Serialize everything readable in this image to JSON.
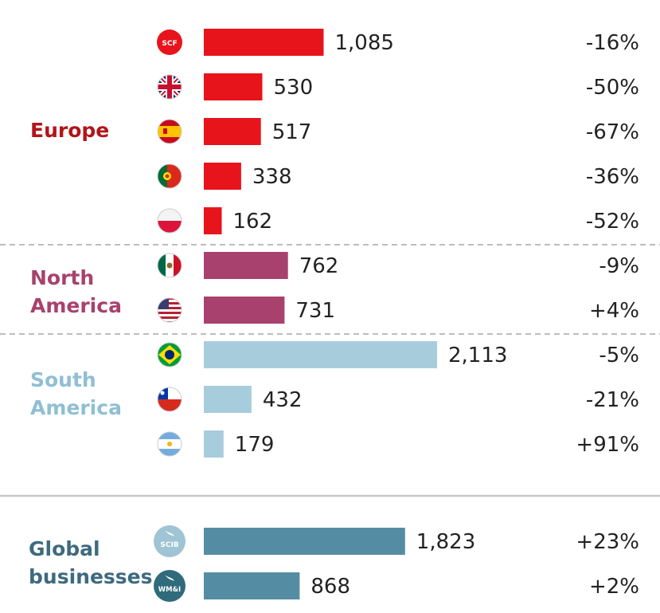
{
  "colors": {
    "europe": "#e8141c",
    "north_america": "#a8416d",
    "south_america": "#a7cddc",
    "global": "#548da3",
    "europe_label": "#b2141a",
    "north_america_label": "#a8416d",
    "south_america_label": "#8fbfd3",
    "global_label": "#3d6a7e",
    "separator": "#bdbdbd"
  },
  "regions": {
    "europe": "Europe",
    "north_america": [
      "North",
      "America"
    ],
    "south_america": [
      "South",
      "America"
    ],
    "global": [
      "Global",
      "businesses"
    ]
  },
  "chart_data": {
    "type": "bar",
    "orientation": "horizontal",
    "title": "",
    "series": [
      {
        "name": "value",
        "values": [
          1085,
          530,
          517,
          338,
          162,
          762,
          731,
          2113,
          432,
          179,
          1823,
          868
        ]
      },
      {
        "name": "change",
        "values": [
          "-16%",
          "-50%",
          "-67%",
          "-36%",
          "-52%",
          "-9%",
          "+4%",
          "-5%",
          "-21%",
          "+91%",
          "+23%",
          "+2%"
        ]
      }
    ],
    "categories": [
      "SCF",
      "UK",
      "Spain",
      "Portugal",
      "Poland",
      "Mexico",
      "US",
      "Brazil",
      "Chile",
      "Argentina",
      "SCIB",
      "WM&I"
    ],
    "rows": [
      {
        "unit": "SCF",
        "icon": "scf-icon",
        "group": "europe",
        "value": 1085,
        "label": "1,085",
        "change": "-16%"
      },
      {
        "unit": "UK",
        "icon": "uk-flag-icon",
        "group": "europe",
        "value": 530,
        "label": "530",
        "change": "-50%"
      },
      {
        "unit": "Spain",
        "icon": "spain-flag-icon",
        "group": "europe",
        "value": 517,
        "label": "517",
        "change": "-67%"
      },
      {
        "unit": "Portugal",
        "icon": "portugal-flag-icon",
        "group": "europe",
        "value": 338,
        "label": "338",
        "change": "-36%"
      },
      {
        "unit": "Poland",
        "icon": "poland-flag-icon",
        "group": "europe",
        "value": 162,
        "label": "162",
        "change": "-52%"
      },
      {
        "unit": "Mexico",
        "icon": "mexico-flag-icon",
        "group": "north_america",
        "value": 762,
        "label": "762",
        "change": "-9%"
      },
      {
        "unit": "US",
        "icon": "us-flag-icon",
        "group": "north_america",
        "value": 731,
        "label": "731",
        "change": "+4%"
      },
      {
        "unit": "Brazil",
        "icon": "brazil-flag-icon",
        "group": "south_america",
        "value": 2113,
        "label": "2,113",
        "change": "-5%"
      },
      {
        "unit": "Chile",
        "icon": "chile-flag-icon",
        "group": "south_america",
        "value": 432,
        "label": "432",
        "change": "-21%"
      },
      {
        "unit": "Argentina",
        "icon": "argentina-flag-icon",
        "group": "south_america",
        "value": 179,
        "label": "179",
        "change": "+91%"
      },
      {
        "unit": "SCIB",
        "icon": "scib-icon",
        "group": "global",
        "value": 1823,
        "label": "1,823",
        "change": "+23%"
      },
      {
        "unit": "WM&I",
        "icon": "wmi-icon",
        "group": "global",
        "value": 868,
        "label": "868",
        "change": "+2%"
      }
    ],
    "badges": {
      "scf": "SCF",
      "scib": "SCIB",
      "wmi": "WM&I"
    },
    "xlim": [
      0,
      2113
    ],
    "grid": false,
    "legend": "none"
  }
}
